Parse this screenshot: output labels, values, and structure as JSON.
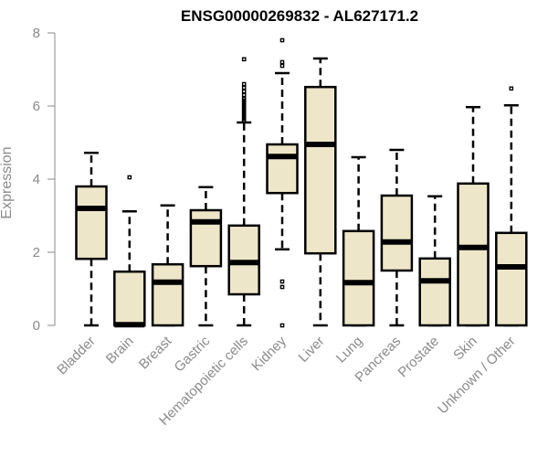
{
  "chart_data": {
    "type": "boxplot",
    "title": "ENSG00000269832 - AL627171.2",
    "xlabel": "",
    "ylabel": "Expression",
    "ylim": [
      0,
      8
    ],
    "yticks": [
      0,
      2,
      4,
      6,
      8
    ],
    "box_color": "#ede6c9",
    "categories": [
      "Bladder",
      "Brain",
      "Breast",
      "Gastric",
      "Hematopoietic cells",
      "Kidney",
      "Liver",
      "Lung",
      "Pancreas",
      "Prostate",
      "Skin",
      "Unknown / Other"
    ],
    "series": [
      {
        "name": "Bladder",
        "whisker_low": 0,
        "q1": 1.82,
        "median": 3.2,
        "q3": 3.8,
        "whisker_high": 4.72,
        "outliers": []
      },
      {
        "name": "Brain",
        "whisker_low": 0,
        "q1": 0,
        "median": 0.02,
        "q3": 1.47,
        "whisker_high": 3.12,
        "outliers": [
          4.05
        ]
      },
      {
        "name": "Breast",
        "whisker_low": 0,
        "q1": 0,
        "median": 1.18,
        "q3": 1.67,
        "whisker_high": 3.28,
        "outliers": []
      },
      {
        "name": "Gastric",
        "whisker_low": 0,
        "q1": 1.62,
        "median": 2.83,
        "q3": 3.15,
        "whisker_high": 3.78,
        "outliers": []
      },
      {
        "name": "Hematopoietic cells",
        "whisker_low": 0,
        "q1": 0.85,
        "median": 1.72,
        "q3": 2.73,
        "whisker_high": 5.55,
        "outliers": [
          5.6,
          5.65,
          5.7,
          5.75,
          5.8,
          5.85,
          5.9,
          5.95,
          6.0,
          6.05,
          6.1,
          6.15,
          6.2,
          6.3,
          6.4,
          6.5,
          6.6,
          7.28
        ]
      },
      {
        "name": "Kidney",
        "whisker_low": 2.08,
        "q1": 3.62,
        "median": 4.62,
        "q3": 4.95,
        "whisker_high": 6.9,
        "outliers": [
          0,
          1.05,
          1.2,
          7.1,
          7.2,
          7.8
        ]
      },
      {
        "name": "Liver",
        "whisker_low": 0,
        "q1": 1.97,
        "median": 4.95,
        "q3": 6.52,
        "whisker_high": 7.3,
        "outliers": []
      },
      {
        "name": "Lung",
        "whisker_low": 0,
        "q1": 0,
        "median": 1.17,
        "q3": 2.58,
        "whisker_high": 4.6,
        "outliers": []
      },
      {
        "name": "Pancreas",
        "whisker_low": 0,
        "q1": 1.5,
        "median": 2.28,
        "q3": 3.55,
        "whisker_high": 4.8,
        "outliers": []
      },
      {
        "name": "Prostate",
        "whisker_low": 0,
        "q1": 0,
        "median": 1.22,
        "q3": 1.83,
        "whisker_high": 3.53,
        "outliers": []
      },
      {
        "name": "Skin",
        "whisker_low": 0,
        "q1": 0,
        "median": 2.13,
        "q3": 3.88,
        "whisker_high": 5.97,
        "outliers": []
      },
      {
        "name": "Unknown / Other",
        "whisker_low": 0,
        "q1": 0,
        "median": 1.6,
        "q3": 2.53,
        "whisker_high": 6.02,
        "outliers": [
          6.48
        ]
      }
    ]
  }
}
